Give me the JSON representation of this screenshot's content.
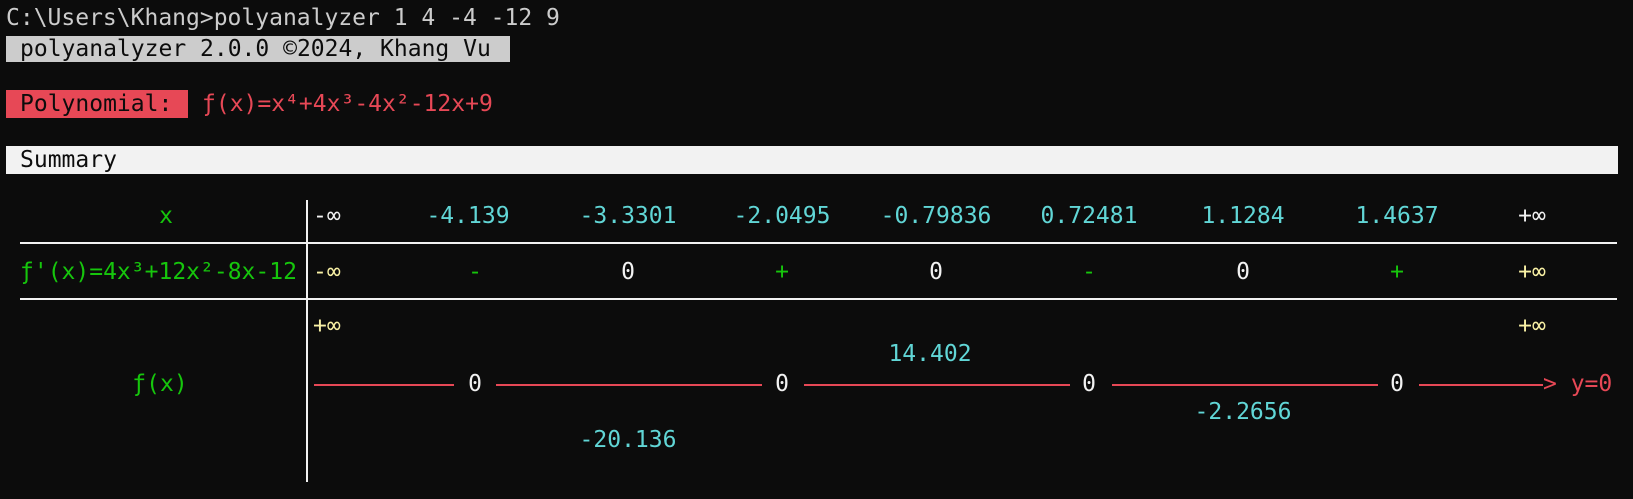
{
  "terminal": {
    "prompt_line": "C:\\Users\\Khang>polyanalyzer 1 4 -4 -12 9",
    "banner": "polyanalyzer 2.0.0 ©2024, Khang Vu",
    "polynomial_label": "Polynomial:",
    "polynomial_expr": "ƒ(x)=x⁴+4x³-4x²-12x+9",
    "summary_label": "Summary"
  },
  "table": {
    "x_label": "x",
    "x_values": [
      "-∞",
      "-4.139",
      "-3.3301",
      "-2.0495",
      "-0.79836",
      "0.72481",
      "1.1284",
      "1.4637",
      "+∞"
    ],
    "deriv_label": "ƒ'(x)=4x³+12x²-8x-12",
    "deriv_values": [
      "-∞",
      "-",
      "0",
      "+",
      "0",
      "-",
      "0",
      "+",
      "+∞"
    ],
    "f_label": "ƒ(x)",
    "f_top_left": "+∞",
    "f_top_right": "+∞",
    "f_zero_1": "0",
    "f_zero_2": "0",
    "f_zero_3": "0",
    "f_zero_4": "0",
    "f_max": "14.402",
    "f_min_1": "-20.136",
    "f_min_2": "-2.2656",
    "asymptote_label": "> y=0"
  },
  "colors": {
    "background": "#0c0c0c",
    "polynomial": "#e74856",
    "label_green": "#16c60c",
    "value_cyan": "#61d6d6",
    "infinity_yellow": "#f9f1a5"
  }
}
